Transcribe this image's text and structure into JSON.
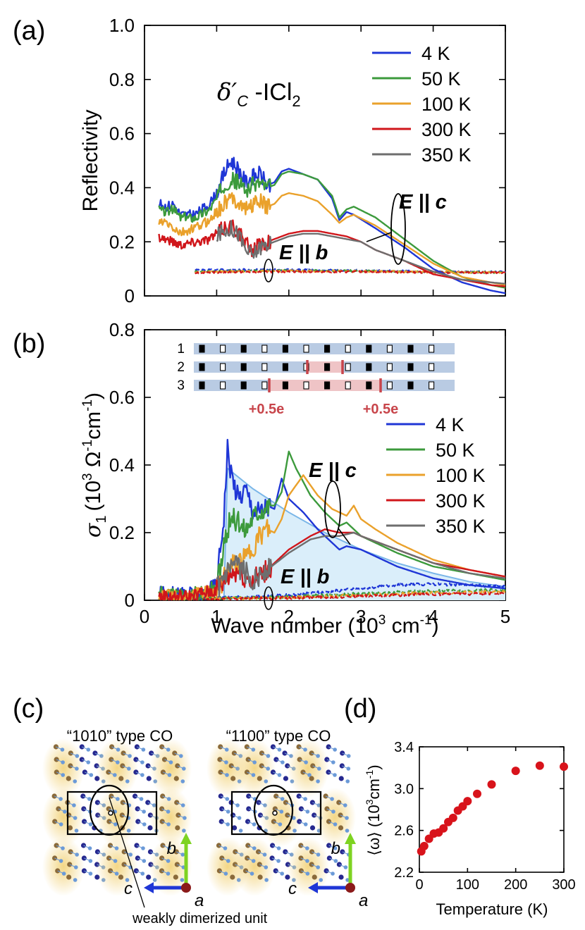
{
  "panel_labels": [
    "(a)",
    "(b)",
    "(c)",
    "(d)"
  ],
  "legend": [
    {
      "label": "4 K",
      "color": "#1f36d6"
    },
    {
      "label": "50 K",
      "color": "#3c9a3c"
    },
    {
      "label": "100 K",
      "color": "#eaa12b"
    },
    {
      "label": "300 K",
      "color": "#d0161b"
    },
    {
      "label": "350 K",
      "color": "#6e6e6e"
    }
  ],
  "panel_a": {
    "compound_symbol": "δ′",
    "compound_sub": "C",
    "compound_rest": " -ICl",
    "compound_sub2": "2",
    "annot_c": "E || c",
    "annot_b": "E || b"
  },
  "panel_b": {
    "ylabel_symbol": "σ",
    "ylabel_sub": "1",
    "ylabel_rest": "(10",
    "ylabel_sup1": "3",
    "ylabel_mid": " Ω",
    "ylabel_sup2": "-1",
    "ylabel_mid2": "cm",
    "ylabel_sup3": "-1",
    "ylabel_end": ")",
    "annot_c": "E || c",
    "annot_b": "E || b",
    "inset": {
      "row_labels": [
        "1",
        "2",
        "3"
      ],
      "charge_labels": [
        "+0.5e",
        "+0.5e"
      ]
    }
  },
  "panel_c": {
    "left_title": "“1010” type CO",
    "right_title": "“1100” type CO",
    "axis_b": "b",
    "axis_c": "c",
    "axis_a": "a",
    "callout": "weakly dimerized unit",
    "structure_colors": {
      "dark_atom": "#26288f",
      "light_atom": "#6b9ad8",
      "brown_atom": "#8a6a3a",
      "glow": "#f2d278",
      "b_arrow": "#7ed321",
      "c_arrow": "#1f36d6",
      "a_atom": "#8b1a1a"
    }
  },
  "chart_data": [
    {
      "type": "line",
      "panel": "(a)",
      "xlabel": "",
      "ylabel": "Reflectivity",
      "xlim": [
        0,
        5
      ],
      "ylim": [
        0,
        1.0
      ],
      "xticks": [
        0,
        1,
        2,
        3,
        4,
        5
      ],
      "xtick_labels": [
        "",
        "",
        "",
        "",
        "",
        ""
      ],
      "yticks": [
        0,
        0.2,
        0.4,
        0.6,
        0.8,
        1.0
      ],
      "ytick_labels": [
        "0",
        "0.2",
        "0.4",
        "0.6",
        "0.8",
        "1.0"
      ],
      "series": [
        {
          "name": "4 K",
          "polarization": "E || c",
          "color": "#1f36d6",
          "x": [
            0.2,
            0.3,
            0.4,
            0.5,
            0.7,
            0.9,
            1.0,
            1.1,
            1.2,
            1.3,
            1.4,
            1.5,
            1.6,
            1.7,
            1.8,
            1.9,
            2.0,
            2.2,
            2.4,
            2.6,
            2.7,
            2.8,
            2.9,
            3.2,
            3.6,
            4.0,
            4.4,
            4.8,
            5.0
          ],
          "y": [
            0.34,
            0.33,
            0.34,
            0.3,
            0.3,
            0.34,
            0.38,
            0.45,
            0.5,
            0.47,
            0.42,
            0.44,
            0.45,
            0.41,
            0.42,
            0.46,
            0.47,
            0.45,
            0.43,
            0.36,
            0.28,
            0.31,
            0.3,
            0.25,
            0.18,
            0.1,
            0.05,
            0.02,
            0.01
          ]
        },
        {
          "name": "50 K",
          "polarization": "E || c",
          "color": "#3c9a3c",
          "x": [
            0.2,
            0.3,
            0.4,
            0.5,
            0.7,
            0.9,
            1.0,
            1.1,
            1.2,
            1.3,
            1.4,
            1.5,
            1.6,
            1.7,
            1.8,
            1.9,
            2.0,
            2.2,
            2.4,
            2.6,
            2.7,
            2.8,
            2.9,
            3.2,
            3.6,
            4.0,
            4.4,
            4.8,
            5.0
          ],
          "y": [
            0.32,
            0.31,
            0.32,
            0.29,
            0.29,
            0.32,
            0.36,
            0.41,
            0.43,
            0.42,
            0.39,
            0.41,
            0.42,
            0.4,
            0.41,
            0.45,
            0.46,
            0.45,
            0.43,
            0.37,
            0.29,
            0.32,
            0.33,
            0.29,
            0.21,
            0.13,
            0.07,
            0.04,
            0.03
          ]
        },
        {
          "name": "100 K",
          "polarization": "E || c",
          "color": "#eaa12b",
          "x": [
            0.2,
            0.3,
            0.5,
            0.7,
            0.9,
            1.0,
            1.1,
            1.2,
            1.3,
            1.4,
            1.5,
            1.6,
            1.7,
            1.8,
            1.9,
            2.0,
            2.2,
            2.4,
            2.6,
            2.7,
            2.8,
            2.9,
            3.2,
            3.6,
            4.0,
            4.4,
            4.8,
            5.0
          ],
          "y": [
            0.27,
            0.27,
            0.23,
            0.25,
            0.28,
            0.31,
            0.34,
            0.36,
            0.35,
            0.32,
            0.34,
            0.35,
            0.33,
            0.34,
            0.37,
            0.38,
            0.37,
            0.35,
            0.3,
            0.27,
            0.29,
            0.3,
            0.26,
            0.19,
            0.12,
            0.07,
            0.05,
            0.04
          ]
        },
        {
          "name": "300 K",
          "polarization": "E || c",
          "color": "#d0161b",
          "x": [
            0.2,
            0.3,
            0.5,
            0.7,
            0.9,
            1.0,
            1.1,
            1.2,
            1.3,
            1.4,
            1.5,
            1.6,
            1.8,
            2.0,
            2.2,
            2.4,
            2.6,
            2.8,
            3.0,
            3.2,
            3.6,
            4.0,
            4.4,
            4.8,
            5.0
          ],
          "y": [
            0.22,
            0.21,
            0.19,
            0.2,
            0.21,
            0.23,
            0.25,
            0.26,
            0.24,
            0.19,
            0.17,
            0.19,
            0.21,
            0.23,
            0.24,
            0.24,
            0.23,
            0.22,
            0.2,
            0.17,
            0.13,
            0.08,
            0.06,
            0.04,
            0.035
          ]
        },
        {
          "name": "350 K",
          "polarization": "E || c",
          "color": "#6e6e6e",
          "x": [
            1.0,
            1.1,
            1.2,
            1.3,
            1.4,
            1.5,
            1.6,
            1.8,
            2.0,
            2.2,
            2.4,
            2.6,
            2.8,
            3.0,
            3.2,
            3.6,
            4.0,
            4.4,
            4.8,
            5.0
          ],
          "y": [
            0.22,
            0.24,
            0.25,
            0.23,
            0.17,
            0.15,
            0.18,
            0.2,
            0.22,
            0.23,
            0.23,
            0.22,
            0.21,
            0.2,
            0.17,
            0.13,
            0.09,
            0.06,
            0.05,
            0.045
          ]
        },
        {
          "name": "4 K (E || b)",
          "polarization": "E || b",
          "color": "#1f36d6",
          "dashed": true,
          "x": [
            0.7,
            1.0,
            2.0,
            3.0,
            4.0,
            5.0
          ],
          "y": [
            0.095,
            0.096,
            0.097,
            0.094,
            0.09,
            0.088
          ]
        },
        {
          "name": "50 K (E || b)",
          "polarization": "E || b",
          "color": "#3c9a3c",
          "dashed": true,
          "x": [
            0.7,
            1.0,
            2.0,
            3.0,
            4.0,
            5.0
          ],
          "y": [
            0.09,
            0.092,
            0.094,
            0.092,
            0.089,
            0.087
          ]
        },
        {
          "name": "100 K (E || b)",
          "polarization": "E || b",
          "color": "#eaa12b",
          "dashed": true,
          "x": [
            0.7,
            1.0,
            2.0,
            3.0,
            4.0,
            5.0
          ],
          "y": [
            0.088,
            0.09,
            0.092,
            0.091,
            0.088,
            0.086
          ]
        },
        {
          "name": "300 K (E || b)",
          "polarization": "E || b",
          "color": "#d0161b",
          "dashed": true,
          "x": [
            0.7,
            1.0,
            2.0,
            3.0,
            4.0,
            5.0
          ],
          "y": [
            0.086,
            0.088,
            0.09,
            0.089,
            0.087,
            0.085
          ]
        }
      ]
    },
    {
      "type": "line",
      "panel": "(b)",
      "xlabel": "Wave number (10³ cm⁻¹)",
      "ylabel": "σ1 (10³ Ω⁻¹cm⁻¹)",
      "xlim": [
        0,
        5
      ],
      "ylim": [
        0,
        0.8
      ],
      "xticks": [
        0,
        1,
        2,
        3,
        4,
        5
      ],
      "xtick_labels": [
        "0",
        "1",
        "2",
        "3",
        "4",
        "5"
      ],
      "yticks": [
        0,
        0.2,
        0.4,
        0.6,
        0.8
      ],
      "ytick_labels": [
        "0",
        "0.2",
        "0.4",
        "0.6",
        "0.8"
      ],
      "shaded_model": {
        "name": "model absorption",
        "color": "#7ab6e8",
        "fill": "#daeefa",
        "x": [
          1.1,
          1.15,
          1.5,
          2.0,
          2.5,
          3.0,
          3.5,
          4.0,
          4.5,
          5.0
        ],
        "y": [
          0.0,
          0.39,
          0.33,
          0.26,
          0.2,
          0.15,
          0.11,
          0.08,
          0.055,
          0.04
        ]
      },
      "series": [
        {
          "name": "4 K",
          "polarization": "E || c",
          "color": "#1f36d6",
          "x": [
            0.2,
            0.5,
            0.8,
            1.0,
            1.1,
            1.15,
            1.2,
            1.3,
            1.4,
            1.5,
            1.6,
            1.7,
            1.8,
            1.9,
            2.0,
            2.2,
            2.4,
            2.6,
            2.7,
            2.8,
            3.0,
            3.5,
            4.0,
            4.5,
            5.0
          ],
          "y": [
            0.02,
            0.02,
            0.02,
            0.05,
            0.25,
            0.45,
            0.38,
            0.3,
            0.33,
            0.27,
            0.26,
            0.28,
            0.27,
            0.36,
            0.3,
            0.26,
            0.21,
            0.17,
            0.15,
            0.16,
            0.15,
            0.1,
            0.065,
            0.045,
            0.035
          ]
        },
        {
          "name": "50 K",
          "polarization": "E || c",
          "color": "#3c9a3c",
          "x": [
            0.2,
            0.5,
            0.8,
            1.0,
            1.1,
            1.2,
            1.3,
            1.4,
            1.5,
            1.6,
            1.7,
            1.8,
            1.9,
            2.0,
            2.1,
            2.3,
            2.5,
            2.7,
            2.8,
            2.9,
            3.0,
            3.5,
            4.0,
            4.5,
            5.0
          ],
          "y": [
            0.02,
            0.02,
            0.02,
            0.04,
            0.15,
            0.25,
            0.23,
            0.21,
            0.25,
            0.27,
            0.28,
            0.28,
            0.32,
            0.44,
            0.39,
            0.31,
            0.26,
            0.22,
            0.23,
            0.21,
            0.19,
            0.14,
            0.1,
            0.08,
            0.06
          ]
        },
        {
          "name": "100 K",
          "polarization": "E || c",
          "color": "#eaa12b",
          "x": [
            0.2,
            0.6,
            1.0,
            1.2,
            1.3,
            1.4,
            1.5,
            1.6,
            1.7,
            1.8,
            1.9,
            2.0,
            2.2,
            2.4,
            2.6,
            2.8,
            2.9,
            3.0,
            3.2,
            3.5,
            4.0,
            4.5,
            5.0
          ],
          "y": [
            0.01,
            0.01,
            0.03,
            0.1,
            0.11,
            0.12,
            0.16,
            0.19,
            0.21,
            0.2,
            0.24,
            0.31,
            0.37,
            0.31,
            0.27,
            0.25,
            0.28,
            0.24,
            0.21,
            0.17,
            0.12,
            0.09,
            0.07
          ]
        },
        {
          "name": "300 K",
          "polarization": "E || c",
          "color": "#d0161b",
          "x": [
            0.2,
            0.6,
            1.0,
            1.2,
            1.3,
            1.4,
            1.5,
            1.7,
            2.0,
            2.3,
            2.5,
            2.7,
            2.9,
            3.0,
            3.5,
            4.0,
            4.5,
            5.0
          ],
          "y": [
            0.01,
            0.01,
            0.03,
            0.08,
            0.09,
            0.07,
            0.06,
            0.09,
            0.15,
            0.19,
            0.21,
            0.2,
            0.2,
            0.19,
            0.15,
            0.11,
            0.09,
            0.07
          ]
        },
        {
          "name": "350 K",
          "polarization": "E || c",
          "color": "#6e6e6e",
          "x": [
            1.0,
            1.2,
            1.3,
            1.4,
            1.5,
            1.7,
            2.0,
            2.3,
            2.5,
            2.7,
            2.9,
            3.0,
            3.5,
            4.0,
            4.5,
            5.0
          ],
          "y": [
            0.03,
            0.09,
            0.1,
            0.08,
            0.06,
            0.09,
            0.14,
            0.18,
            0.19,
            0.19,
            0.2,
            0.19,
            0.15,
            0.11,
            0.08,
            0.065
          ]
        },
        {
          "name": "4 K (E || b)",
          "polarization": "E || b",
          "color": "#1f36d6",
          "dashed": true,
          "x": [
            0.7,
            1.5,
            2.0,
            2.5,
            3.0,
            3.5,
            4.0,
            4.5,
            5.0
          ],
          "y": [
            0.005,
            0.01,
            0.015,
            0.025,
            0.035,
            0.045,
            0.048,
            0.045,
            0.04
          ]
        },
        {
          "name": "50 K (E || b)",
          "polarization": "E || b",
          "color": "#3c9a3c",
          "dashed": true,
          "x": [
            0.7,
            2.0,
            3.0,
            4.0,
            5.0
          ],
          "y": [
            0.005,
            0.01,
            0.02,
            0.028,
            0.03
          ]
        },
        {
          "name": "100 K (E || b)",
          "polarization": "E || b",
          "color": "#eaa12b",
          "dashed": true,
          "x": [
            0.7,
            2.0,
            3.0,
            4.0,
            5.0
          ],
          "y": [
            0.004,
            0.008,
            0.015,
            0.022,
            0.025
          ]
        },
        {
          "name": "300 K (E || b)",
          "polarization": "E || b",
          "color": "#d0161b",
          "dashed": true,
          "x": [
            0.7,
            2.0,
            3.0,
            4.0,
            5.0
          ],
          "y": [
            0.003,
            0.007,
            0.012,
            0.018,
            0.02
          ]
        }
      ]
    },
    {
      "type": "scatter",
      "panel": "(d)",
      "xlabel": "Temperature (K)",
      "ylabel": "⟨ω⟩ (10³cm⁻¹)",
      "xlim": [
        0,
        300
      ],
      "ylim": [
        2.2,
        3.4
      ],
      "xticks": [
        0,
        100,
        200,
        300
      ],
      "xtick_labels": [
        "0",
        "100",
        "200",
        "300"
      ],
      "yticks": [
        2.2,
        2.6,
        3.0,
        3.4
      ],
      "ytick_labels": [
        "2.2",
        "2.6",
        "3.0",
        "3.4"
      ],
      "series": [
        {
          "name": "⟨ω⟩",
          "color": "#d8131b",
          "x": [
            4,
            10,
            20,
            30,
            40,
            50,
            60,
            70,
            80,
            90,
            100,
            120,
            150,
            200,
            250,
            300
          ],
          "y": [
            2.4,
            2.45,
            2.52,
            2.57,
            2.58,
            2.62,
            2.68,
            2.72,
            2.79,
            2.83,
            2.88,
            2.95,
            3.04,
            3.17,
            3.22,
            3.21
          ]
        }
      ]
    }
  ]
}
